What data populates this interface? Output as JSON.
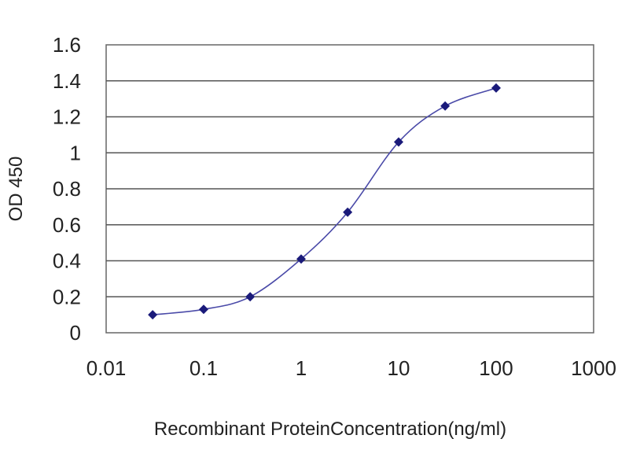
{
  "chart_data": {
    "type": "line",
    "title": "",
    "xlabel": "Recombinant ProteinConcentration(ng/ml)",
    "ylabel": "OD 450",
    "x_scale": "log",
    "xlim": [
      0.01,
      1000
    ],
    "ylim": [
      0,
      1.6
    ],
    "x_ticks": [
      "0.01",
      "0.1",
      "1",
      "10",
      "100",
      "1000"
    ],
    "y_ticks": [
      "0",
      "0.2",
      "0.4",
      "0.6",
      "0.8",
      "1",
      "1.2",
      "1.4",
      "1.6"
    ],
    "grid": "horizontal",
    "legend": "none",
    "series": [
      {
        "x": [
          0.03,
          0.1,
          0.3,
          1,
          3,
          10,
          30,
          100
        ],
        "y": [
          0.1,
          0.13,
          0.2,
          0.41,
          0.67,
          1.06,
          1.26,
          1.36
        ]
      }
    ],
    "colors": {
      "line": "#4a4aa8",
      "marker": "#1a1a7a",
      "grid": "#555555",
      "plot_background": "#ffffff"
    }
  }
}
